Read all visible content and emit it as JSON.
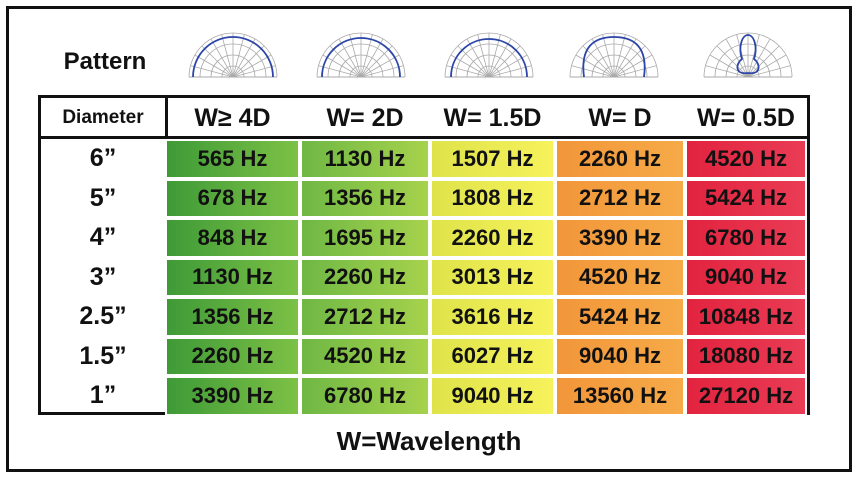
{
  "header": {
    "label": "Pattern"
  },
  "table": {
    "columns": [
      "Diameter",
      "W≥ 4D",
      "W= 2D",
      "W= 1.5D",
      "W= D",
      "W= 0.5D"
    ],
    "rows": [
      [
        "6”",
        "565 Hz",
        "1130 Hz",
        "1507 Hz",
        "2260 Hz",
        "4520 Hz"
      ],
      [
        "5”",
        "678 Hz",
        "1356 Hz",
        "1808 Hz",
        "2712 Hz",
        "5424 Hz"
      ],
      [
        "4”",
        "848 Hz",
        "1695 Hz",
        "2260 Hz",
        "3390 Hz",
        "6780 Hz"
      ],
      [
        "3”",
        "1130 Hz",
        "2260 Hz",
        "3013 Hz",
        "4520 Hz",
        "9040 Hz"
      ],
      [
        "2.5”",
        "1356 Hz",
        "2712 Hz",
        "3616 Hz",
        "5424 Hz",
        "10848 Hz"
      ],
      [
        "1.5”",
        "2260 Hz",
        "4520 Hz",
        "6027 Hz",
        "9040 Hz",
        "18080 Hz"
      ],
      [
        "1”",
        "3390 Hz",
        "6780 Hz",
        "9040 Hz",
        "13560 Hz",
        "27120 Hz"
      ]
    ]
  },
  "footer": "W=Wavelength"
}
